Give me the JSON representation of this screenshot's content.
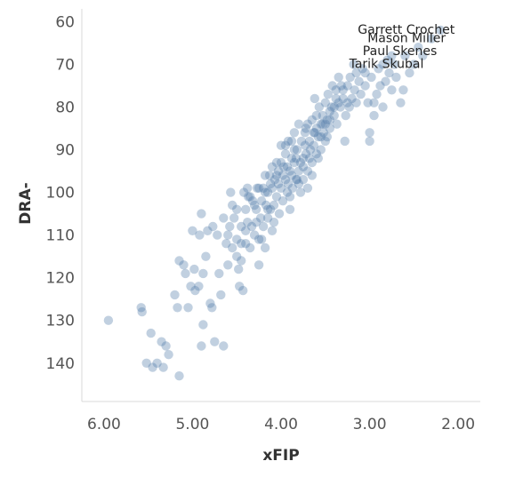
{
  "chart_data": {
    "type": "scatter",
    "title": "",
    "xlabel": "xFIP",
    "ylabel": "DRA-",
    "xlim": [
      6.25,
      1.75
    ],
    "ylim": [
      57,
      149
    ],
    "x_reversed": true,
    "y_reversed": true,
    "x_ticks": [
      "6.00",
      "5.00",
      "4.00",
      "3.00",
      "2.00"
    ],
    "x_tick_values": [
      6.0,
      5.0,
      4.0,
      3.0,
      2.0
    ],
    "y_ticks": [
      "60",
      "70",
      "80",
      "90",
      "100",
      "110",
      "120",
      "130",
      "140"
    ],
    "y_tick_values": [
      60,
      70,
      80,
      90,
      100,
      110,
      120,
      130,
      140
    ],
    "grid": false,
    "marker_color": "#4e79a7",
    "annotations": [
      {
        "text": "Garrett Crochet",
        "x": 2.2,
        "y": 62
      },
      {
        "text": "Mason Miller",
        "x": 2.3,
        "y": 64
      },
      {
        "text": "Paul Skenes",
        "x": 2.4,
        "y": 67
      },
      {
        "text": "Tarik Skubal",
        "x": 2.55,
        "y": 70
      }
    ],
    "points": [
      [
        5.95,
        130
      ],
      [
        5.58,
        127
      ],
      [
        5.57,
        128
      ],
      [
        5.52,
        140
      ],
      [
        5.47,
        133
      ],
      [
        5.45,
        141
      ],
      [
        5.4,
        140
      ],
      [
        5.35,
        135
      ],
      [
        5.33,
        141
      ],
      [
        5.3,
        136
      ],
      [
        5.27,
        138
      ],
      [
        5.2,
        124
      ],
      [
        5.15,
        143
      ],
      [
        5.17,
        127
      ],
      [
        5.15,
        116
      ],
      [
        5.1,
        117
      ],
      [
        5.08,
        119
      ],
      [
        5.05,
        127
      ],
      [
        5.02,
        122
      ],
      [
        5.0,
        109
      ],
      [
        4.98,
        118
      ],
      [
        4.97,
        123
      ],
      [
        4.93,
        122
      ],
      [
        4.92,
        110
      ],
      [
        4.9,
        105
      ],
      [
        4.9,
        136
      ],
      [
        4.88,
        119
      ],
      [
        4.88,
        131
      ],
      [
        4.85,
        115
      ],
      [
        4.83,
        109
      ],
      [
        4.8,
        126
      ],
      [
        4.78,
        127
      ],
      [
        4.77,
        108
      ],
      [
        4.75,
        135
      ],
      [
        4.72,
        110
      ],
      [
        4.7,
        119
      ],
      [
        4.68,
        124
      ],
      [
        4.65,
        136
      ],
      [
        4.65,
        106
      ],
      [
        4.62,
        112
      ],
      [
        4.6,
        117
      ],
      [
        4.58,
        108
      ],
      [
        4.57,
        100
      ],
      [
        4.55,
        103
      ],
      [
        4.55,
        113
      ],
      [
        4.53,
        106
      ],
      [
        4.5,
        111
      ],
      [
        4.5,
        115
      ],
      [
        4.48,
        118
      ],
      [
        4.47,
        122
      ],
      [
        4.45,
        108
      ],
      [
        4.45,
        116
      ],
      [
        4.43,
        123
      ],
      [
        4.42,
        100
      ],
      [
        4.4,
        104
      ],
      [
        4.4,
        112
      ],
      [
        4.38,
        107
      ],
      [
        4.37,
        101
      ],
      [
        4.35,
        113
      ],
      [
        4.33,
        108
      ],
      [
        4.32,
        102
      ],
      [
        4.3,
        110
      ],
      [
        4.28,
        104
      ],
      [
        4.27,
        99
      ],
      [
        4.25,
        111
      ],
      [
        4.25,
        117
      ],
      [
        4.23,
        106
      ],
      [
        4.22,
        102
      ],
      [
        4.2,
        108
      ],
      [
        4.2,
        99
      ],
      [
        4.18,
        113
      ],
      [
        4.17,
        103
      ],
      [
        4.15,
        100
      ],
      [
        4.15,
        106
      ],
      [
        4.13,
        96
      ],
      [
        4.12,
        104
      ],
      [
        4.1,
        99
      ],
      [
        4.1,
        109
      ],
      [
        4.08,
        103
      ],
      [
        4.07,
        97
      ],
      [
        4.05,
        101
      ],
      [
        4.05,
        93
      ],
      [
        4.03,
        95
      ],
      [
        4.02,
        105
      ],
      [
        4.0,
        99
      ],
      [
        4.0,
        89
      ],
      [
        3.98,
        102
      ],
      [
        3.97,
        94
      ],
      [
        3.95,
        91
      ],
      [
        3.95,
        97
      ],
      [
        3.93,
        100
      ],
      [
        3.92,
        88
      ],
      [
        3.9,
        104
      ],
      [
        3.9,
        95
      ],
      [
        3.88,
        92
      ],
      [
        3.87,
        99
      ],
      [
        3.85,
        86
      ],
      [
        3.85,
        93
      ],
      [
        3.83,
        97
      ],
      [
        3.82,
        90
      ],
      [
        3.8,
        84
      ],
      [
        3.8,
        95
      ],
      [
        3.78,
        100
      ],
      [
        3.77,
        88
      ],
      [
        3.75,
        92
      ],
      [
        3.75,
        97
      ],
      [
        3.73,
        86
      ],
      [
        3.72,
        91
      ],
      [
        3.7,
        84
      ],
      [
        3.7,
        95
      ],
      [
        3.68,
        88
      ],
      [
        3.67,
        90
      ],
      [
        3.65,
        83
      ],
      [
        3.65,
        93
      ],
      [
        3.63,
        86
      ],
      [
        3.62,
        78
      ],
      [
        3.6,
        91
      ],
      [
        3.6,
        85
      ],
      [
        3.58,
        87
      ],
      [
        3.57,
        80
      ],
      [
        3.55,
        84
      ],
      [
        3.55,
        90
      ],
      [
        3.53,
        82
      ],
      [
        3.52,
        86
      ],
      [
        3.5,
        79
      ],
      [
        3.5,
        88
      ],
      [
        3.48,
        83
      ],
      [
        3.47,
        77
      ],
      [
        3.45,
        85
      ],
      [
        3.43,
        80
      ],
      [
        3.42,
        75
      ],
      [
        3.4,
        82
      ],
      [
        3.38,
        78
      ],
      [
        3.37,
        84
      ],
      [
        3.35,
        73
      ],
      [
        3.33,
        80
      ],
      [
        3.32,
        75
      ],
      [
        3.3,
        78
      ],
      [
        3.28,
        88
      ],
      [
        3.27,
        82
      ],
      [
        3.25,
        75
      ],
      [
        3.23,
        80
      ],
      [
        3.22,
        73
      ],
      [
        3.2,
        78
      ],
      [
        3.18,
        70
      ],
      [
        3.17,
        76
      ],
      [
        3.15,
        79
      ],
      [
        3.12,
        74
      ],
      [
        3.1,
        77
      ],
      [
        3.08,
        71
      ],
      [
        3.05,
        75
      ],
      [
        3.02,
        79
      ],
      [
        3.0,
        86
      ],
      [
        3.0,
        88
      ],
      [
        2.98,
        73
      ],
      [
        2.95,
        82
      ],
      [
        2.92,
        77
      ],
      [
        2.9,
        71
      ],
      [
        2.88,
        75
      ],
      [
        2.85,
        80
      ],
      [
        2.82,
        74
      ],
      [
        2.8,
        69
      ],
      [
        2.78,
        72
      ],
      [
        2.75,
        76
      ],
      [
        2.72,
        70
      ],
      [
        2.7,
        73
      ],
      [
        2.65,
        79
      ],
      [
        2.62,
        76
      ],
      [
        2.6,
        68
      ],
      [
        2.55,
        72
      ],
      [
        2.5,
        70
      ],
      [
        2.45,
        66
      ],
      [
        2.4,
        68
      ],
      [
        2.3,
        64
      ],
      [
        2.2,
        62
      ],
      [
        4.35,
        101
      ],
      [
        4.28,
        107
      ],
      [
        4.18,
        100
      ],
      [
        4.12,
        98
      ],
      [
        4.08,
        107
      ],
      [
        4.03,
        98
      ],
      [
        3.98,
        96
      ],
      [
        3.92,
        98
      ],
      [
        3.88,
        96
      ],
      [
        3.83,
        92
      ],
      [
        3.78,
        93
      ],
      [
        3.73,
        89
      ],
      [
        3.68,
        92
      ],
      [
        3.63,
        89
      ],
      [
        3.58,
        92
      ],
      [
        3.53,
        84
      ],
      [
        3.48,
        87
      ],
      [
        3.45,
        81
      ],
      [
        3.4,
        80
      ],
      [
        3.35,
        79
      ],
      [
        3.3,
        76
      ],
      [
        4.4,
        109
      ],
      [
        4.3,
        103
      ],
      [
        4.22,
        111
      ],
      [
        4.15,
        104
      ],
      [
        4.0,
        93
      ],
      [
        3.95,
        89
      ],
      [
        3.9,
        101
      ],
      [
        3.85,
        90
      ],
      [
        3.8,
        98
      ],
      [
        3.75,
        94
      ],
      [
        3.7,
        99
      ],
      [
        3.65,
        96
      ],
      [
        3.6,
        82
      ],
      [
        3.55,
        87
      ],
      [
        4.6,
        110
      ],
      [
        4.5,
        104
      ],
      [
        4.45,
        112
      ],
      [
        4.38,
        99
      ],
      [
        4.25,
        99
      ],
      [
        4.18,
        96
      ],
      [
        4.1,
        94
      ],
      [
        4.05,
        96
      ],
      [
        3.93,
        94
      ],
      [
        3.88,
        88
      ],
      [
        3.82,
        97
      ],
      [
        3.72,
        85
      ],
      [
        3.62,
        86
      ],
      [
        3.5,
        84
      ],
      [
        3.45,
        83
      ],
      [
        3.38,
        76
      ],
      [
        3.25,
        79
      ],
      [
        3.15,
        72
      ],
      [
        3.05,
        72
      ],
      [
        2.95,
        79
      ],
      [
        2.85,
        70
      ],
      [
        2.75,
        68
      ]
    ]
  }
}
